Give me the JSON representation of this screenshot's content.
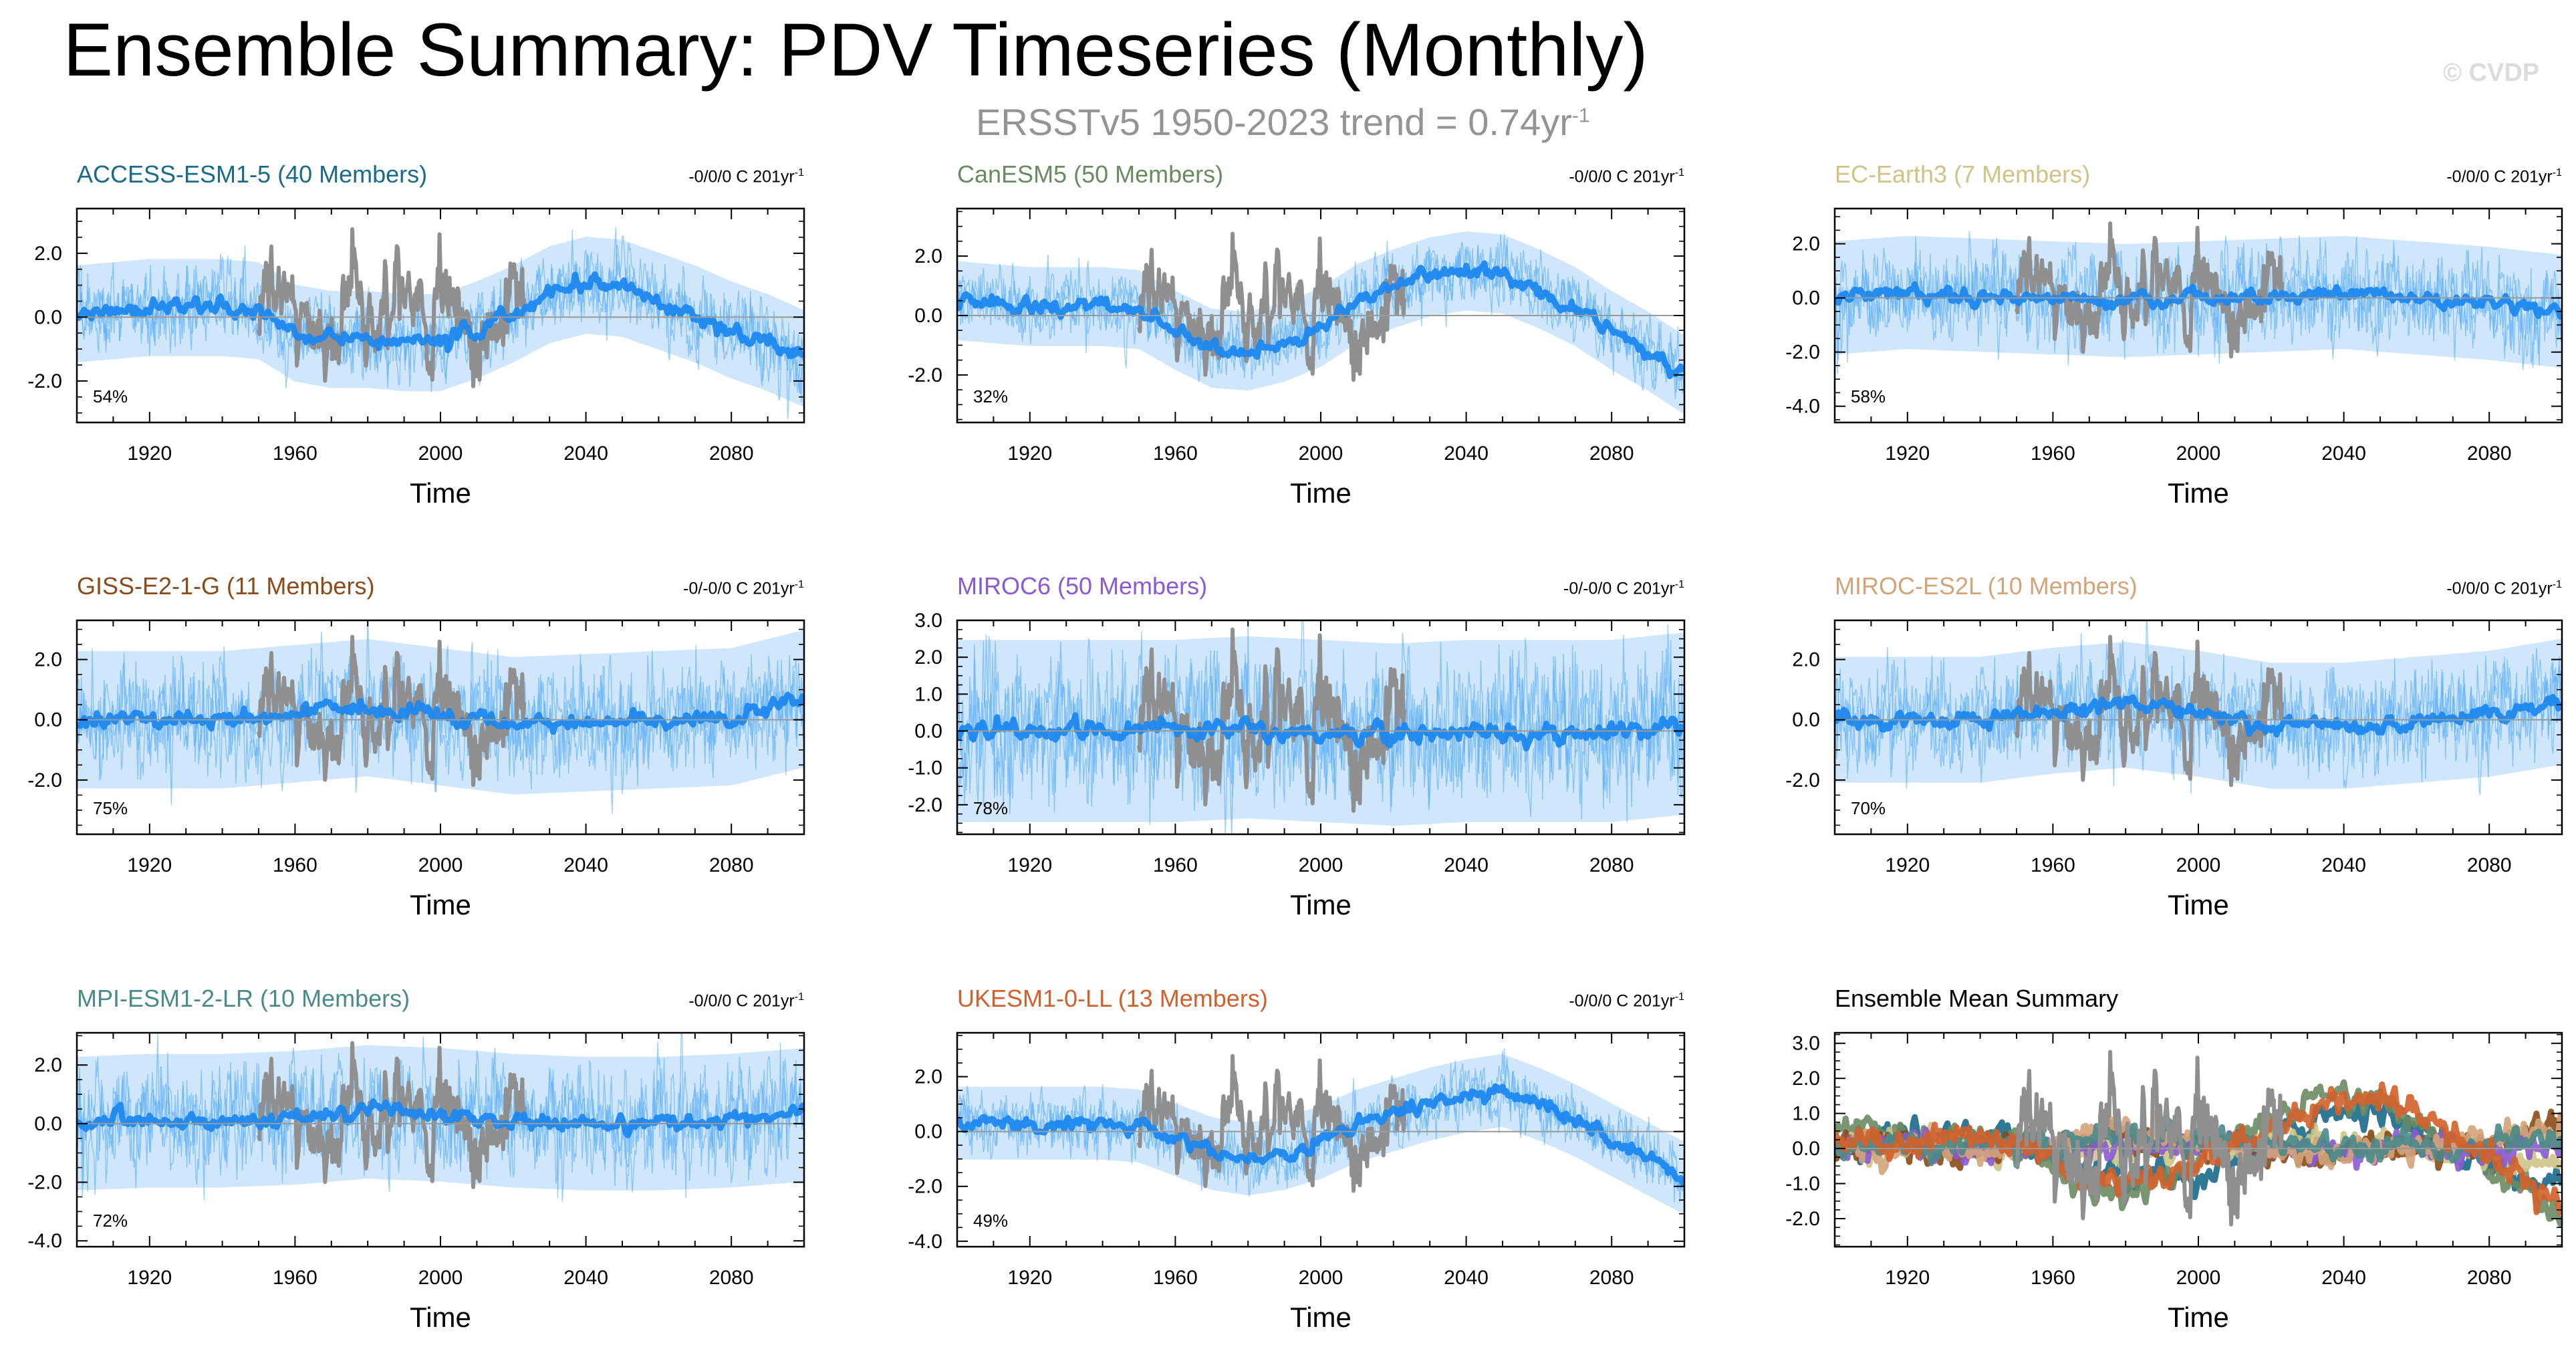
{
  "figure": {
    "title": "Ensemble Summary: PDV Timeseries (Monthly)",
    "watermark": "© CVDP",
    "obs_label": {
      "text": "ERSSTv5 1950-2023 trend = 0.74yr",
      "superscript": "-1"
    }
  },
  "colors": {
    "ensemble_mean": "#1e88ee",
    "member_spread": "#58aef6",
    "range_shading": "#a9d2f8",
    "observations": "#8f8f8f",
    "zero_line": "#9a9a9a"
  },
  "chart_data": [
    {
      "type": "line",
      "title": "ACCESS-ESM1-5 (40 Members)",
      "title_color": "#1a6a8a",
      "trend_text": "-0/0/0 C 201yr",
      "trend_superscript": "-1",
      "percent_label": "54%",
      "xlabel": "Time",
      "ylabel": "",
      "xlim": [
        1900,
        2100
      ],
      "ylim": [
        -3.3,
        3.4
      ],
      "xticks": [
        1920,
        1960,
        2000,
        2040,
        2080
      ],
      "yticks": [
        -2.0,
        0.0,
        2.0
      ],
      "ytick_labels": [
        "-2.0",
        "0.0",
        "2.0"
      ],
      "series": [
        {
          "name": "Ensemble mean",
          "x": [
            1900,
            1920,
            1940,
            1950,
            1960,
            1970,
            1980,
            1990,
            2000,
            2010,
            2020,
            2030,
            2040,
            2050,
            2060,
            2070,
            2080,
            2090,
            2100
          ],
          "values": [
            0.1,
            0.3,
            0.3,
            0.2,
            -0.5,
            -0.7,
            -0.7,
            -0.8,
            -0.8,
            -0.4,
            0.1,
            0.7,
            1.0,
            0.9,
            0.5,
            0.1,
            -0.4,
            -0.8,
            -1.3
          ]
        },
        {
          "name": "Member spread (±)",
          "values": [
            0.8
          ]
        },
        {
          "name": "ERSSTv5 observations",
          "x_range": [
            1950,
            2023
          ],
          "values": [
            0.0,
            2.9,
            -2.5
          ]
        }
      ]
    },
    {
      "type": "line",
      "title": "CanESM5 (50 Members)",
      "title_color": "#6a8a62",
      "trend_text": "-0/0/0 C 201yr",
      "trend_superscript": "-1",
      "percent_label": "32%",
      "xlabel": "Time",
      "ylabel": "",
      "xlim": [
        1900,
        2100
      ],
      "ylim": [
        -3.6,
        3.6
      ],
      "xticks": [
        1920,
        1960,
        2000,
        2040,
        2080
      ],
      "yticks": [
        -2.0,
        0.0,
        2.0
      ],
      "ytick_labels": [
        "-2.0",
        "0.0",
        "2.0"
      ],
      "series": [
        {
          "name": "Ensemble mean",
          "x": [
            1900,
            1920,
            1940,
            1950,
            1960,
            1970,
            1980,
            1990,
            2000,
            2010,
            2020,
            2030,
            2040,
            2050,
            2060,
            2070,
            2080,
            2090,
            2100
          ],
          "values": [
            0.5,
            0.3,
            0.3,
            0.2,
            -0.5,
            -1.1,
            -1.2,
            -0.9,
            -0.4,
            0.4,
            0.9,
            1.3,
            1.5,
            1.4,
            0.9,
            0.3,
            -0.5,
            -1.2,
            -2.0
          ]
        },
        {
          "name": "Member spread (±)",
          "values": [
            0.7
          ]
        },
        {
          "name": "ERSSTv5 observations",
          "x_range": [
            1950,
            2023
          ],
          "values": [
            0.0,
            2.9,
            -2.5
          ]
        }
      ]
    },
    {
      "type": "line",
      "title": "EC-Earth3 (7 Members)",
      "title_color": "#cdc486",
      "trend_text": "-0/0/0 C 201yr",
      "trend_superscript": "-1",
      "percent_label": "58%",
      "xlabel": "Time",
      "ylabel": "",
      "xlim": [
        1900,
        2100
      ],
      "ylim": [
        -4.6,
        3.3
      ],
      "xticks": [
        1920,
        1960,
        2000,
        2040,
        2080
      ],
      "yticks": [
        -4.0,
        -2.0,
        0.0,
        2.0
      ],
      "ytick_labels": [
        "-4.0",
        "-2.0",
        "0.0",
        "2.0"
      ],
      "series": [
        {
          "name": "Ensemble mean",
          "x": [
            1900,
            1920,
            1940,
            1960,
            1980,
            2000,
            2020,
            2040,
            2060,
            2080,
            2100
          ],
          "values": [
            0.0,
            0.2,
            0.1,
            0.0,
            -0.1,
            0.0,
            0.1,
            0.2,
            0.0,
            -0.2,
            -0.5
          ]
        },
        {
          "name": "Member spread (±)",
          "values": [
            1.1
          ]
        },
        {
          "name": "ERSSTv5 observations",
          "x_range": [
            1950,
            2023
          ],
          "values": [
            0.0,
            2.9,
            -2.5
          ]
        }
      ]
    },
    {
      "type": "line",
      "title": "GISS-E2-1-G (11 Members)",
      "title_color": "#8a4a1a",
      "trend_text": "-0/-0/0 C 201yr",
      "trend_superscript": "-1",
      "percent_label": "75%",
      "xlabel": "Time",
      "ylabel": "",
      "xlim": [
        1900,
        2100
      ],
      "ylim": [
        -3.8,
        3.3
      ],
      "xticks": [
        1920,
        1960,
        2000,
        2040,
        2080
      ],
      "yticks": [
        -2.0,
        0.0,
        2.0
      ],
      "ytick_labels": [
        "-2.0",
        "0.0",
        "2.0"
      ],
      "series": [
        {
          "name": "Ensemble mean",
          "x": [
            1900,
            1920,
            1940,
            1960,
            1980,
            2000,
            2020,
            2040,
            2060,
            2080,
            2100
          ],
          "values": [
            0.0,
            0.0,
            0.0,
            0.2,
            0.4,
            0.1,
            -0.2,
            -0.1,
            0.0,
            0.1,
            0.7
          ]
        },
        {
          "name": "Member spread (±)",
          "values": [
            1.2
          ]
        },
        {
          "name": "ERSSTv5 observations",
          "x_range": [
            1950,
            2023
          ],
          "values": [
            0.0,
            2.9,
            -2.5
          ]
        }
      ]
    },
    {
      "type": "line",
      "title": "MIROC6 (50 Members)",
      "title_color": "#8a5ad2",
      "trend_text": "-0/-0/0 C 201yr",
      "trend_superscript": "-1",
      "percent_label": "78%",
      "xlabel": "Time",
      "ylabel": "",
      "xlim": [
        1900,
        2100
      ],
      "ylim": [
        -2.8,
        3.0
      ],
      "xticks": [
        1920,
        1960,
        2000,
        2040,
        2080
      ],
      "yticks": [
        -2.0,
        -1.0,
        0.0,
        1.0,
        2.0,
        3.0
      ],
      "ytick_labels": [
        "-2.0",
        "-1.0",
        "0.0",
        "1.0",
        "2.0",
        "3.0"
      ],
      "series": [
        {
          "name": "Ensemble mean",
          "x": [
            1900,
            1920,
            1940,
            1960,
            1980,
            2000,
            2020,
            2040,
            2060,
            2080,
            2100
          ],
          "values": [
            0.0,
            0.0,
            0.0,
            0.0,
            0.1,
            0.0,
            -0.1,
            0.0,
            0.0,
            0.0,
            0.2
          ]
        },
        {
          "name": "Member spread (±)",
          "values": [
            1.3
          ]
        },
        {
          "name": "ERSSTv5 observations",
          "x_range": [
            1950,
            2023
          ],
          "values": [
            0.0,
            2.9,
            -2.5
          ]
        }
      ]
    },
    {
      "type": "line",
      "title": "MIROC-ES2L (10 Members)",
      "title_color": "#d3a47a",
      "trend_text": "-0/0/0 C 201yr",
      "trend_superscript": "-1",
      "percent_label": "70%",
      "xlabel": "Time",
      "ylabel": "",
      "xlim": [
        1900,
        2100
      ],
      "ylim": [
        -3.8,
        3.3
      ],
      "xticks": [
        1920,
        1960,
        2000,
        2040,
        2080
      ],
      "yticks": [
        -2.0,
        0.0,
        2.0
      ],
      "ytick_labels": [
        "-2.0",
        "0.0",
        "2.0"
      ],
      "series": [
        {
          "name": "Ensemble mean",
          "x": [
            1900,
            1920,
            1940,
            1960,
            1980,
            2000,
            2020,
            2040,
            2060,
            2080,
            2100
          ],
          "values": [
            0.0,
            0.0,
            0.0,
            0.3,
            0.5,
            0.2,
            -0.2,
            -0.2,
            0.0,
            0.2,
            0.6
          ]
        },
        {
          "name": "Member spread (±)",
          "values": [
            1.1
          ]
        },
        {
          "name": "ERSSTv5 observations",
          "x_range": [
            1950,
            2023
          ],
          "values": [
            0.0,
            2.9,
            -2.5
          ]
        }
      ]
    },
    {
      "type": "line",
      "title": "MPI-ESM1-2-LR (10 Members)",
      "title_color": "#4a8a8a",
      "trend_text": "-0/0/0 C 201yr",
      "trend_superscript": "-1",
      "percent_label": "72%",
      "xlabel": "Time",
      "ylabel": "",
      "xlim": [
        1900,
        2100
      ],
      "ylim": [
        -4.2,
        3.1
      ],
      "xticks": [
        1920,
        1960,
        2000,
        2040,
        2080
      ],
      "yticks": [
        -4.0,
        -2.0,
        0.0,
        2.0
      ],
      "ytick_labels": [
        "-4.0",
        "-2.0",
        "0.0",
        "2.0"
      ],
      "series": [
        {
          "name": "Ensemble mean",
          "x": [
            1900,
            1920,
            1940,
            1960,
            1980,
            2000,
            2020,
            2040,
            2060,
            2080,
            2100
          ],
          "values": [
            0.0,
            0.1,
            0.1,
            0.2,
            0.4,
            0.3,
            0.1,
            0.0,
            0.0,
            0.1,
            0.3
          ]
        },
        {
          "name": "Member spread (±)",
          "values": [
            1.2
          ]
        },
        {
          "name": "ERSSTv5 observations",
          "x_range": [
            1950,
            2023
          ],
          "values": [
            0.0,
            2.9,
            -2.5
          ]
        }
      ]
    },
    {
      "type": "line",
      "title": "UKESM1-0-LL (13 Members)",
      "title_color": "#d2602a",
      "trend_text": "-0/0/0 C 201yr",
      "trend_superscript": "-1",
      "percent_label": "49%",
      "xlabel": "Time",
      "ylabel": "",
      "xlim": [
        1900,
        2100
      ],
      "ylim": [
        -4.2,
        3.6
      ],
      "xticks": [
        1920,
        1960,
        2000,
        2040,
        2080
      ],
      "yticks": [
        -4.0,
        -2.0,
        0.0,
        2.0
      ],
      "ytick_labels": [
        "-4.0",
        "-2.0",
        "0.0",
        "2.0"
      ],
      "series": [
        {
          "name": "Ensemble mean",
          "x": [
            1900,
            1920,
            1940,
            1950,
            1960,
            1970,
            1980,
            1990,
            2000,
            2010,
            2020,
            2030,
            2040,
            2050,
            2060,
            2070,
            2080,
            2090,
            2100
          ],
          "values": [
            0.3,
            0.3,
            0.3,
            0.2,
            -0.3,
            -0.8,
            -1.0,
            -0.8,
            -0.4,
            0.2,
            0.6,
            1.0,
            1.3,
            1.5,
            1.0,
            0.4,
            -0.3,
            -1.0,
            -1.7
          ]
        },
        {
          "name": "Member spread (±)",
          "values": [
            0.7
          ]
        },
        {
          "name": "ERSSTv5 observations",
          "x_range": [
            1950,
            2023
          ],
          "values": [
            0.0,
            2.9,
            -2.5
          ]
        }
      ]
    },
    {
      "type": "line",
      "title": "Ensemble Mean Summary",
      "title_color": "#000000",
      "xlabel": "Time",
      "ylabel": "",
      "xlim": [
        1900,
        2100
      ],
      "ylim": [
        -2.8,
        3.3
      ],
      "xticks": [
        1920,
        1960,
        2000,
        2040,
        2080
      ],
      "yticks": [
        -2.0,
        -1.0,
        0.0,
        1.0,
        2.0,
        3.0
      ],
      "ytick_labels": [
        "-2.0",
        "-1.0",
        "0.0",
        "1.0",
        "2.0",
        "3.0"
      ],
      "series": [
        {
          "name": "ACCESS-ESM1-5",
          "color": "#1a6a8a"
        },
        {
          "name": "CanESM5",
          "color": "#6a8a62"
        },
        {
          "name": "EC-Earth3",
          "color": "#cdc486"
        },
        {
          "name": "GISS-E2-1-G",
          "color": "#8a4a1a"
        },
        {
          "name": "MIROC6",
          "color": "#8a5ad2"
        },
        {
          "name": "MIROC-ES2L",
          "color": "#d3a47a"
        },
        {
          "name": "MPI-ESM1-2-LR",
          "color": "#4a8a8a"
        },
        {
          "name": "UKESM1-0-LL",
          "color": "#d2602a"
        },
        {
          "name": "ERSSTv5 observations",
          "color": "#8f8f8f"
        }
      ]
    }
  ]
}
